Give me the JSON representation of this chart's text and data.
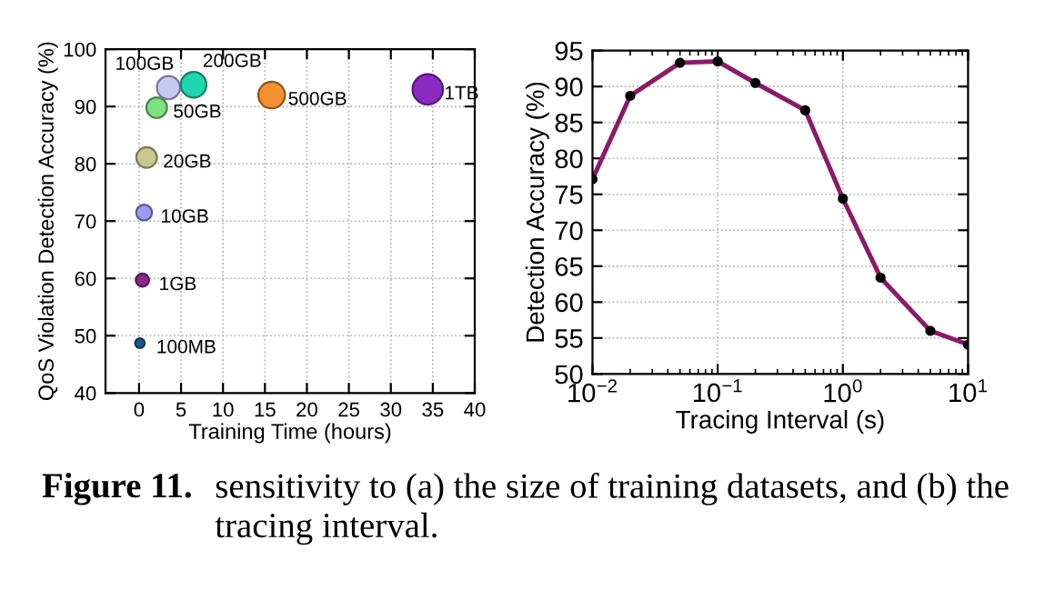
{
  "chart_data": [
    {
      "type": "bubble",
      "xlabel": "Training Time (hours)",
      "ylabel": "QoS Violation Detection Accuracy (%)",
      "series": [
        {
          "name": "100MB",
          "color": "#1a5a8a",
          "x": [
            0.1
          ],
          "values": [
            48.7
          ],
          "sizes": [
            0.1
          ]
        },
        {
          "name": "1GB",
          "color": "#8b2a8b",
          "x": [
            0.4
          ],
          "values": [
            59.7
          ],
          "sizes": [
            0.19
          ]
        },
        {
          "name": "10GB",
          "color": "#9a9af0",
          "x": [
            0.6
          ],
          "values": [
            71.5
          ],
          "sizes": [
            0.27
          ]
        },
        {
          "name": "20GB",
          "color": "#c9c98f",
          "x": [
            0.9
          ],
          "values": [
            81.1
          ],
          "sizes": [
            0.46
          ]
        },
        {
          "name": "50GB",
          "color": "#7fe07f",
          "x": [
            2.1
          ],
          "values": [
            89.8
          ],
          "sizes": [
            0.46
          ]
        },
        {
          "name": "100GB",
          "color": "#c8c8f5",
          "x": [
            3.5
          ],
          "values": [
            93.3
          ],
          "sizes": [
            0.58
          ]
        },
        {
          "name": "200GB",
          "color": "#1fd6b0",
          "x": [
            6.5
          ],
          "values": [
            93.8
          ],
          "sizes": [
            0.71
          ]
        },
        {
          "name": "500GB",
          "color": "#f39030",
          "x": [
            15.8
          ],
          "values": [
            92.0
          ],
          "sizes": [
            0.77
          ]
        },
        {
          "name": "1TB",
          "color": "#8a2ac0",
          "x": [
            34.4
          ],
          "values": [
            93.0
          ],
          "sizes": [
            1
          ]
        }
      ],
      "xlim": [
        -4,
        40
      ],
      "xticks": [
        0,
        5,
        10,
        15,
        20,
        25,
        30,
        35,
        40
      ],
      "ylim": [
        40,
        100
      ],
      "yticks": [
        40,
        50,
        60,
        70,
        80,
        90,
        100
      ],
      "grid": true,
      "annotations": [
        "Figure 11.",
        "sensitivity to (a) the size of training datasets, and (b) the tracing interval."
      ]
    },
    {
      "type": "line",
      "xlabel": "Tracing Interval (s)",
      "ylabel": "Detection Accuracy (%)",
      "x": [
        0.01,
        0.02,
        0.05,
        0.1,
        0.2,
        0.5,
        1,
        2,
        5,
        10
      ],
      "values": [
        77.1,
        88.7,
        93.3,
        93.5,
        90.5,
        86.7,
        74.4,
        63.4,
        56.0,
        54.1
      ],
      "color": "#8b1a6b",
      "colors": [
        "#000000",
        "#000000",
        "#000000",
        "#000000",
        "#000000",
        "#000000",
        "#000000",
        "#000000",
        "#000000",
        "#000000"
      ],
      "marker": "circle",
      "line_style": "solid",
      "log": "x",
      "xlim": [
        0.01,
        10
      ],
      "xticks": [
        {
          "value": 0.01,
          "label": "10$^{−2}$"
        },
        {
          "value": 0.1,
          "label": "10$^{−1}$"
        },
        {
          "value": 1,
          "label": "10$^{0}$"
        },
        {
          "value": 10,
          "label": "10$^{1}$"
        }
      ],
      "ylim": [
        50,
        95
      ],
      "yticks": [
        50,
        55,
        60,
        65,
        70,
        75,
        80,
        85,
        90,
        95
      ],
      "grid": true
    }
  ]
}
